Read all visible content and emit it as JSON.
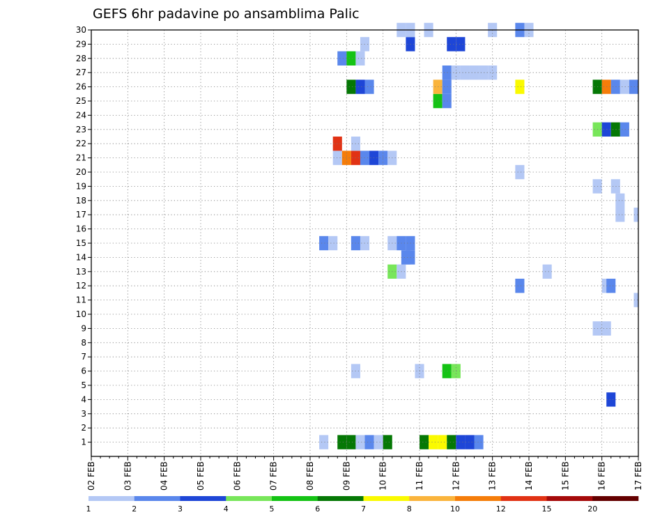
{
  "chart_data": {
    "type": "heatmap",
    "title": "GEFS 6hr padavine po ansamblima Palic",
    "xlabel": "",
    "ylabel": "",
    "x_tick_labels": [
      "02 FEB",
      "03 FEB",
      "04 FEB",
      "05 FEB",
      "06 FEB",
      "07 FEB",
      "08 FEB",
      "09 FEB",
      "10 FEB",
      "11 FEB",
      "12 FEB",
      "13 FEB",
      "14 FEB",
      "15 FEB",
      "16 FEB",
      "17 FEB"
    ],
    "y_tick_labels": [
      "1",
      "2",
      "3",
      "4",
      "5",
      "6",
      "7",
      "8",
      "9",
      "10",
      "11",
      "12",
      "13",
      "14",
      "15",
      "16",
      "17",
      "18",
      "19",
      "20",
      "21",
      "22",
      "23",
      "24",
      "25",
      "26",
      "27",
      "28",
      "29",
      "30"
    ],
    "xlim": [
      0,
      60
    ],
    "ylim": [
      0,
      30
    ],
    "x_unit": "6-hour steps from 02 FEB",
    "grid": true,
    "colorbar": {
      "labels": [
        "1",
        "2",
        "3",
        "4",
        "5",
        "6",
        "7",
        "8",
        "10",
        "12",
        "15",
        "20"
      ],
      "colors": [
        "#b4c8f5",
        "#5a87ec",
        "#1e46d7",
        "#78e65a",
        "#14c314",
        "#057805",
        "#fafa00",
        "#fab43c",
        "#f57d0a",
        "#e13214",
        "#a50a0a",
        "#640000"
      ]
    },
    "members": [
      {
        "member": 1,
        "cells": [
          [
            25.5,
            1
          ],
          [
            27.5,
            6
          ],
          [
            28.5,
            6
          ],
          [
            29.5,
            1
          ],
          [
            30.5,
            2
          ],
          [
            31.5,
            1
          ],
          [
            32.5,
            6
          ],
          [
            36.5,
            6
          ],
          [
            37.5,
            7
          ],
          [
            38.5,
            7
          ],
          [
            39.5,
            6
          ],
          [
            40.5,
            3
          ],
          [
            41.5,
            3
          ],
          [
            42.5,
            2
          ]
        ]
      },
      {
        "member": 4,
        "cells": [
          [
            57.0,
            3
          ]
        ]
      },
      {
        "member": 6,
        "cells": [
          [
            29.0,
            1
          ],
          [
            36.0,
            1
          ],
          [
            39.0,
            5
          ],
          [
            40.0,
            4
          ]
        ]
      },
      {
        "member": 9,
        "cells": [
          [
            55.5,
            1
          ],
          [
            56.5,
            1
          ]
        ]
      },
      {
        "member": 11,
        "cells": [
          [
            60.0,
            1
          ]
        ]
      },
      {
        "member": 12,
        "cells": [
          [
            56.5,
            1
          ],
          [
            57.0,
            2
          ],
          [
            47.0,
            2
          ]
        ]
      },
      {
        "member": 13,
        "cells": [
          [
            33.0,
            4
          ],
          [
            34.0,
            1
          ],
          [
            50.0,
            1
          ]
        ]
      },
      {
        "member": 14,
        "cells": [
          [
            35.0,
            2
          ],
          [
            34.5,
            2
          ]
        ]
      },
      {
        "member": 15,
        "cells": [
          [
            25.5,
            2
          ],
          [
            26.5,
            1
          ],
          [
            29.0,
            2
          ],
          [
            30.0,
            1
          ],
          [
            33.0,
            1
          ],
          [
            34.0,
            2
          ],
          [
            35.0,
            2
          ]
        ]
      },
      {
        "member": 17,
        "cells": [
          [
            58.0,
            1
          ],
          [
            60.0,
            1
          ]
        ]
      },
      {
        "member": 18,
        "cells": [
          [
            58.0,
            1
          ]
        ]
      },
      {
        "member": 19,
        "cells": [
          [
            55.5,
            1
          ],
          [
            57.5,
            1
          ]
        ]
      },
      {
        "member": 20,
        "cells": [
          [
            47.0,
            1
          ]
        ]
      },
      {
        "member": 21,
        "cells": [
          [
            27.0,
            1
          ],
          [
            28.0,
            9
          ],
          [
            29.0,
            10
          ],
          [
            30.0,
            2
          ],
          [
            31.0,
            3
          ],
          [
            32.0,
            2
          ],
          [
            33.0,
            1
          ]
        ]
      },
      {
        "member": 22,
        "cells": [
          [
            27.0,
            10
          ],
          [
            29.0,
            1
          ]
        ]
      },
      {
        "member": 23,
        "cells": [
          [
            55.5,
            4
          ],
          [
            56.5,
            3
          ],
          [
            57.5,
            6
          ],
          [
            58.5,
            2
          ]
        ]
      },
      {
        "member": 25,
        "cells": [
          [
            38.0,
            5
          ],
          [
            39.0,
            2
          ]
        ]
      },
      {
        "member": 26,
        "cells": [
          [
            28.5,
            6
          ],
          [
            29.5,
            3
          ],
          [
            30.5,
            2
          ],
          [
            38.0,
            8
          ],
          [
            39.0,
            2
          ],
          [
            47.0,
            7
          ],
          [
            55.5,
            6
          ],
          [
            56.5,
            9
          ],
          [
            57.5,
            2
          ],
          [
            58.5,
            1
          ],
          [
            59.5,
            2
          ]
        ]
      },
      {
        "member": 27,
        "cells": [
          [
            39.0,
            2
          ],
          [
            40.0,
            1
          ],
          [
            41.0,
            1
          ],
          [
            42.0,
            1
          ],
          [
            43.0,
            1
          ],
          [
            44.0,
            1
          ]
        ]
      },
      {
        "member": 28,
        "cells": [
          [
            27.5,
            2
          ],
          [
            28.5,
            5
          ],
          [
            29.5,
            1
          ]
        ]
      },
      {
        "member": 29,
        "cells": [
          [
            30.0,
            1
          ],
          [
            35.0,
            3
          ],
          [
            39.5,
            3
          ],
          [
            40.5,
            3
          ]
        ]
      },
      {
        "member": 30,
        "cells": [
          [
            34.0,
            1
          ],
          [
            35.0,
            1
          ],
          [
            37.0,
            1
          ],
          [
            44.0,
            1
          ],
          [
            47.0,
            2
          ],
          [
            48.0,
            1
          ]
        ]
      }
    ]
  }
}
